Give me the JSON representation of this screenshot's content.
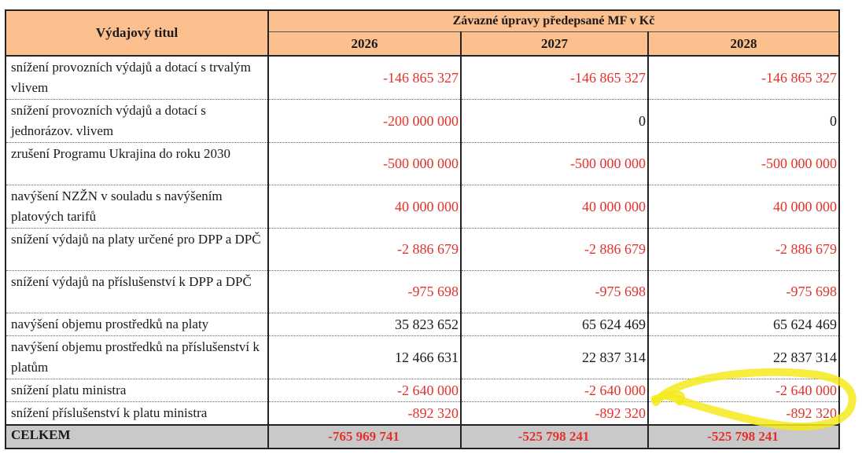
{
  "table": {
    "col_title": "Výdajový titul",
    "group_title": "Závazné úpravy předepsané MF v Kč",
    "years": [
      "2026",
      "2027",
      "2028"
    ],
    "rows": [
      {
        "label": "snížení provozních výdajů a dotací s trvalým vlivem",
        "values": [
          "-146 865 327",
          "-146 865 327",
          "-146 865 327"
        ],
        "neg": [
          true,
          true,
          true
        ]
      },
      {
        "label": "snížení provozních výdajů a dotací s jednorázov. vlivem",
        "values": [
          "-200 000 000",
          "0",
          "0"
        ],
        "neg": [
          true,
          false,
          false
        ]
      },
      {
        "label": "zrušení Programu Ukrajina do roku 2030",
        "values": [
          "-500 000 000",
          "-500 000 000",
          "-500 000 000"
        ],
        "neg": [
          true,
          true,
          true
        ]
      },
      {
        "label": "navýšení NZŽN v souladu s navýšením platových tarifů",
        "values": [
          "40 000 000",
          "40 000 000",
          "40 000 000"
        ],
        "neg": [
          true,
          true,
          true
        ]
      },
      {
        "label": "snížení výdajů na platy určené pro DPP a DPČ",
        "values": [
          "-2 886 679",
          "-2 886 679",
          "-2 886 679"
        ],
        "neg": [
          true,
          true,
          true
        ]
      },
      {
        "label": "snížení výdajů na příslušenství k DPP a DPČ",
        "values": [
          "-975 698",
          "-975 698",
          "-975 698"
        ],
        "neg": [
          true,
          true,
          true
        ]
      },
      {
        "label": "navýšení objemu prostředků na platy",
        "values": [
          "35 823 652",
          "65 624 469",
          "65 624 469"
        ],
        "neg": [
          false,
          false,
          false
        ]
      },
      {
        "label": "navýšení objemu prostředků na příslušenství k platům",
        "values": [
          "12 466 631",
          "22 837 314",
          "22 837 314"
        ],
        "neg": [
          false,
          false,
          false
        ]
      },
      {
        "label": "snížení platu ministra",
        "values": [
          "-2 640 000",
          "-2 640 000",
          "-2 640 000"
        ],
        "neg": [
          true,
          true,
          true
        ]
      },
      {
        "label": "snížení příslušenství k platu ministra",
        "values": [
          "-892 320",
          "-892 320",
          "-892 320"
        ],
        "neg": [
          true,
          true,
          true
        ]
      }
    ],
    "total": {
      "label": "CELKEM",
      "values": [
        "-765 969 741",
        "-525 798 241",
        "-525 798 241"
      ]
    }
  },
  "colors": {
    "header_bg": "#fcbf8e",
    "negative": "#e4312b",
    "total_bg": "#c9c9c9",
    "highlighter": "#f4ea1c"
  }
}
